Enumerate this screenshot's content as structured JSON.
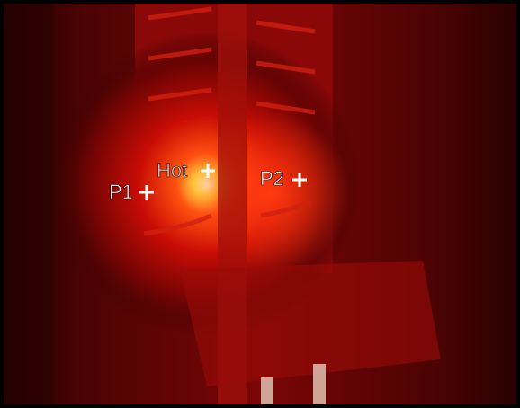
{
  "markers": [
    {
      "label": "P1"
    },
    {
      "label": "Hot"
    },
    {
      "label": "P2"
    }
  ]
}
